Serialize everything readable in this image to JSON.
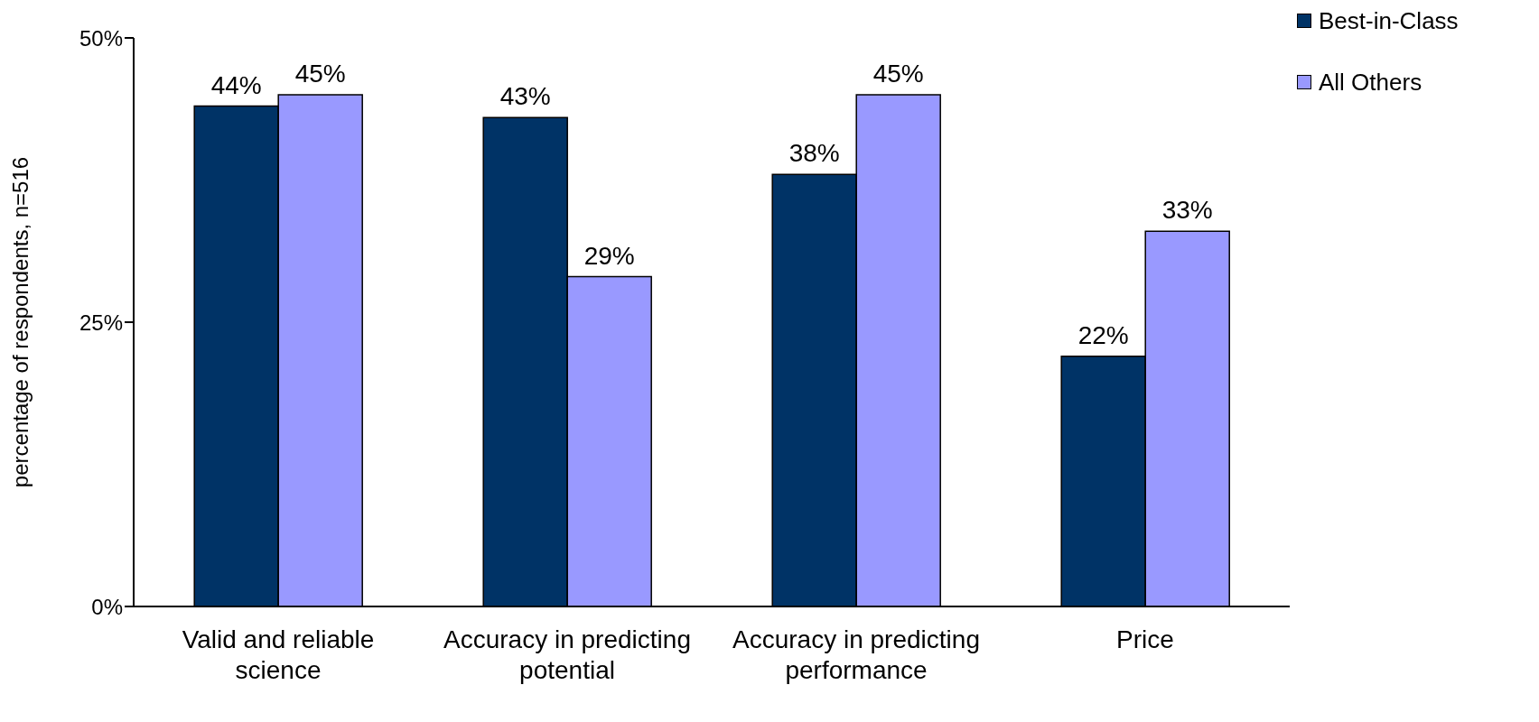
{
  "chart_data": {
    "type": "bar",
    "ylabel": "percentage of respondents, n=516",
    "categories": [
      "Valid and reliable science",
      "Accuracy in predicting potential",
      "Accuracy in predicting performance",
      "Price"
    ],
    "series": [
      {
        "name": "Best-in-Class",
        "color": "#003366",
        "values": [
          44,
          43,
          38,
          22
        ],
        "value_labels": [
          "44%",
          "43%",
          "38%",
          "22%"
        ]
      },
      {
        "name": "All Others",
        "color": "#9999ff",
        "values": [
          45,
          29,
          45,
          33
        ],
        "value_labels": [
          "45%",
          "29%",
          "45%",
          "33%"
        ]
      }
    ],
    "ylim": [
      0,
      50
    ],
    "yticks": [
      {
        "value": 0,
        "label": "0%"
      },
      {
        "value": 25,
        "label": "25%"
      },
      {
        "value": 50,
        "label": "50%"
      }
    ],
    "grid": false,
    "legend": "top right"
  }
}
